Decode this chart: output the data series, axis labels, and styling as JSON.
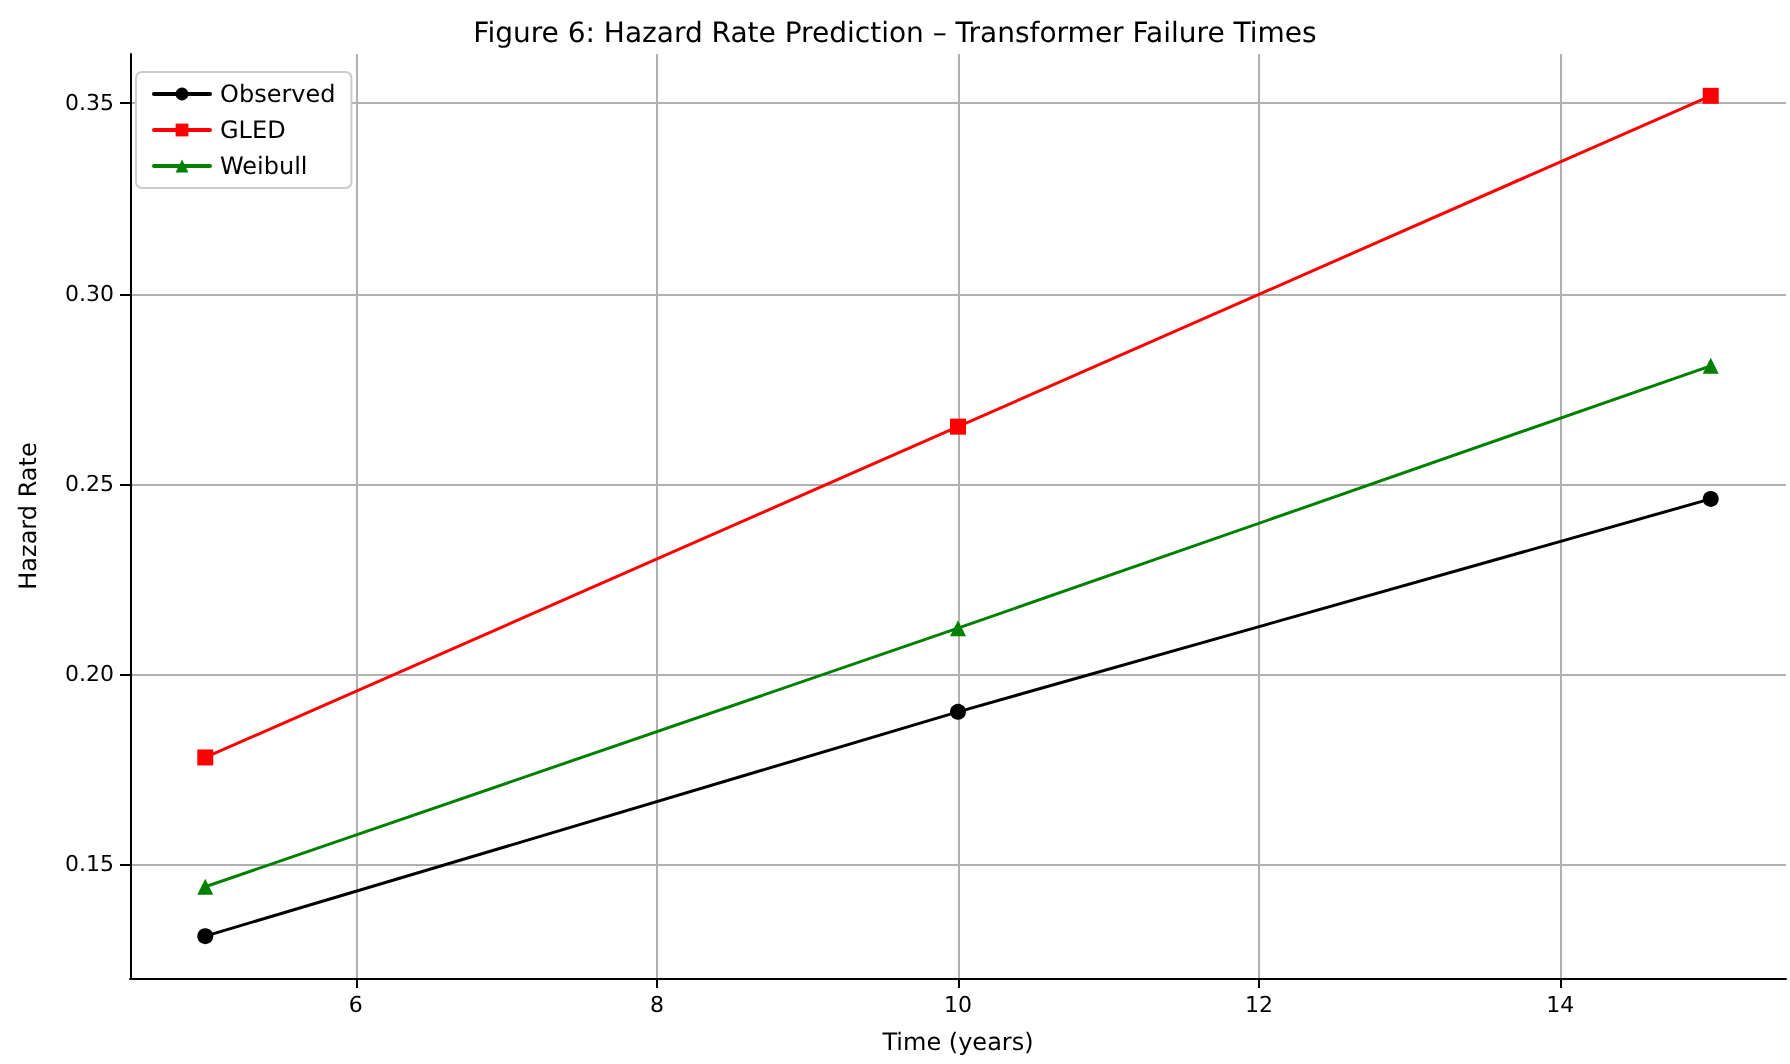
{
  "chart_data": {
    "type": "line",
    "title": "Figure 6: Hazard Rate Prediction – Transformer Failure Times",
    "xlabel": "Time (years)",
    "ylabel": "Hazard Rate",
    "x": [
      5,
      10,
      15
    ],
    "series": [
      {
        "name": "Observed",
        "color": "#000000",
        "marker": "circle",
        "values": [
          0.131,
          0.19,
          0.246
        ]
      },
      {
        "name": "GLED",
        "color": "#ff0000",
        "marker": "square",
        "values": [
          0.178,
          0.265,
          0.352
        ]
      },
      {
        "name": "Weibull",
        "color": "#008000",
        "marker": "triangle",
        "values": [
          0.144,
          0.212,
          0.281
        ]
      }
    ],
    "xlim": [
      4.5,
      15.5
    ],
    "xticks": [
      6,
      8,
      10,
      12,
      14
    ],
    "ylim": [
      0.12,
      0.363
    ],
    "yticks": [
      {
        "value": 0.15,
        "label": "0.15"
      },
      {
        "value": 0.2,
        "label": "0.20"
      },
      {
        "value": 0.25,
        "label": "0.25"
      },
      {
        "value": 0.3,
        "label": "0.30"
      },
      {
        "value": 0.35,
        "label": "0.35"
      }
    ],
    "grid": true,
    "legend": "top left",
    "line_style": "solid"
  }
}
